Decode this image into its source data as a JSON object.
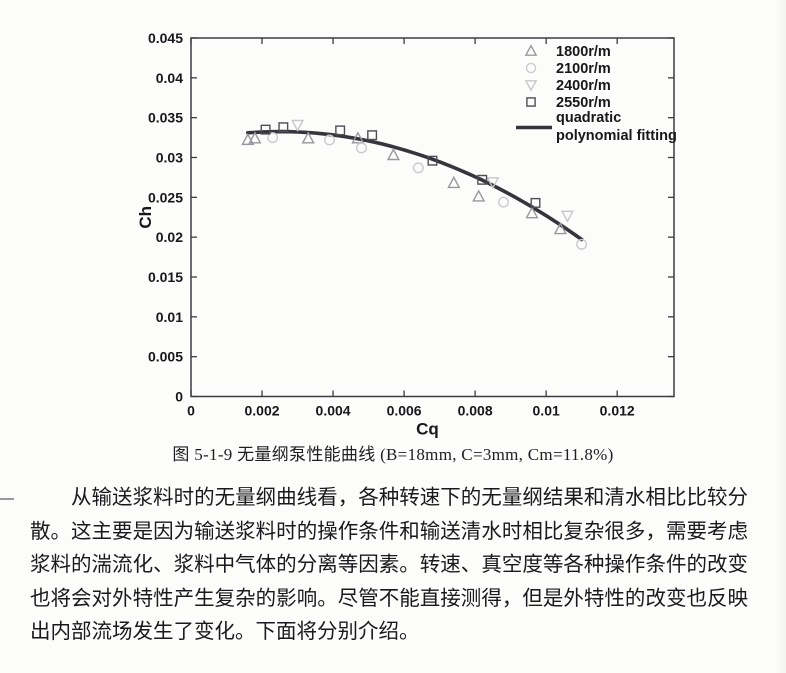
{
  "figure": {
    "caption": "图 5-1-9 无量纲泵性能曲线 (B=18mm, C=3mm, Cm=11.8%)"
  },
  "paragraph": {
    "text": "从输送浆料时的无量纲曲线看，各种转速下的无量纲结果和清水相比比较分散。这主要是因为输送浆料时的操作条件和输送清水时相比复杂很多，需要考虑浆料的湍流化、浆料中气体的分离等因素。转速、真空度等各种操作条件的改变也将会对外特性产生复杂的影响。尽管不能直接测得，但是外特性的改变也反映出内部流场发生了变化。下面将分别介绍。"
  },
  "chart_data": {
    "type": "scatter",
    "title": "",
    "xlabel": "Cq",
    "ylabel": "Ch",
    "xlim": [
      0,
      0.0136
    ],
    "ylim": [
      0,
      0.045
    ],
    "xticks": [
      0,
      0.002,
      0.004,
      0.006,
      0.008,
      0.01,
      0.012
    ],
    "xtick_labels": [
      "0",
      "0.002",
      "0.004",
      "0.006",
      "0.008",
      "0.01",
      "0.012"
    ],
    "yticks": [
      0,
      0.005,
      0.01,
      0.015,
      0.02,
      0.025,
      0.03,
      0.035,
      0.04,
      0.045
    ],
    "ytick_labels": [
      "0",
      "0.005",
      "0.01",
      "0.015",
      "0.02",
      "0.025",
      "0.03",
      "0.035",
      "0.04",
      "0.045"
    ],
    "grid": false,
    "legend_position": "inside-top-right",
    "axis_color": "#3c3c42",
    "text_color": "#18181c",
    "series": [
      {
        "name": "1800r/m",
        "marker": "triangle-up",
        "color": "#98989e",
        "points": [
          [
            0.0016,
            0.0322
          ],
          [
            0.0018,
            0.0324
          ],
          [
            0.0033,
            0.0324
          ],
          [
            0.0047,
            0.0324
          ],
          [
            0.0057,
            0.0303
          ],
          [
            0.0074,
            0.0268
          ],
          [
            0.0081,
            0.0251
          ],
          [
            0.0096,
            0.023
          ],
          [
            0.0104,
            0.021
          ]
        ]
      },
      {
        "name": "2100r/m",
        "marker": "circle",
        "color": "#cbcbcf",
        "points": [
          [
            0.0023,
            0.0325
          ],
          [
            0.0039,
            0.0322
          ],
          [
            0.0048,
            0.0312
          ],
          [
            0.0064,
            0.0287
          ],
          [
            0.0088,
            0.0244
          ],
          [
            0.011,
            0.0191
          ]
        ]
      },
      {
        "name": "2400r/m",
        "marker": "triangle-down",
        "color": "#c8c8cc",
        "points": [
          [
            0.003,
            0.0341
          ],
          [
            0.0085,
            0.0269
          ],
          [
            0.0106,
            0.0227
          ]
        ]
      },
      {
        "name": "2550r/m",
        "marker": "square",
        "color": "#4e4e55",
        "points": [
          [
            0.0021,
            0.0335
          ],
          [
            0.0026,
            0.0338
          ],
          [
            0.0042,
            0.0334
          ],
          [
            0.0051,
            0.0328
          ],
          [
            0.0068,
            0.0296
          ],
          [
            0.0082,
            0.0272
          ],
          [
            0.0097,
            0.0243
          ]
        ]
      }
    ],
    "fit_curve": {
      "name": "quadratic polynomial fitting",
      "legend_lines": [
        "quadratic",
        "polynomial fitting"
      ],
      "color": "#35353c",
      "stroke_width": 3.6,
      "vertex": [
        0.0025,
        0.03325
      ],
      "coefficient": -187.5,
      "x_range": [
        0.0016,
        0.011
      ]
    }
  }
}
